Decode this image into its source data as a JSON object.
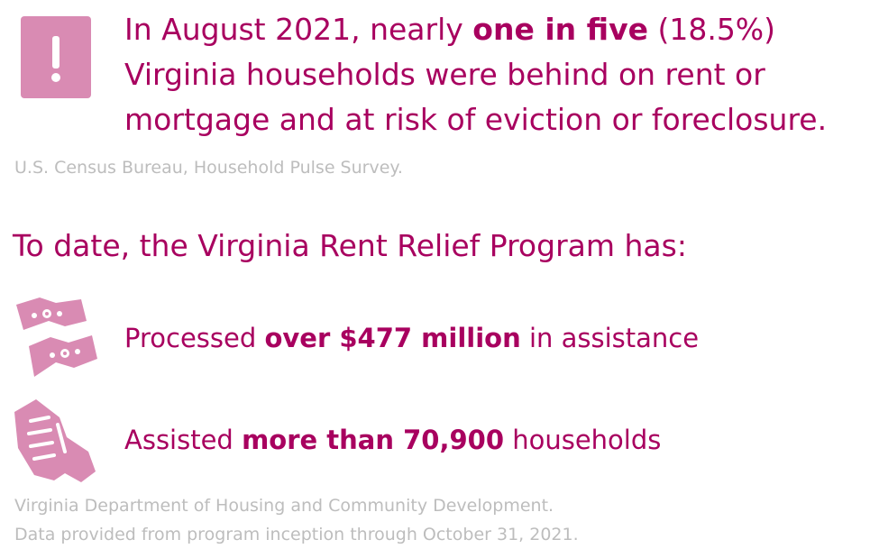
{
  "alert": {
    "icon": "exclamation-icon",
    "color": "#d98bb3"
  },
  "headline": {
    "prefix": "In August 2021, nearly ",
    "emphasis": "one in five",
    "suffix": " (18.5%) Virginia households were behind on rent or mortgage and at risk of eviction or foreclosure."
  },
  "source_1": "U.S. Census Bureau, Household Pulse Survey.",
  "subhead": "To date, the Virginia Rent Relief Program has:",
  "stats": [
    {
      "icon": "money-icon",
      "prefix": "Processed ",
      "emphasis": "over $477 million",
      "suffix": " in assistance"
    },
    {
      "icon": "hand-icon",
      "prefix": "Assisted ",
      "emphasis": "more than 70,900",
      "suffix": " households"
    }
  ],
  "source_2": {
    "line1": "Virginia Department of Housing and Community Development.",
    "line2": "Data provided from program inception through October 31, 2021."
  },
  "colors": {
    "accent": "#a8005f",
    "icon": "#d98bb3",
    "muted": "#bdbdbd"
  }
}
